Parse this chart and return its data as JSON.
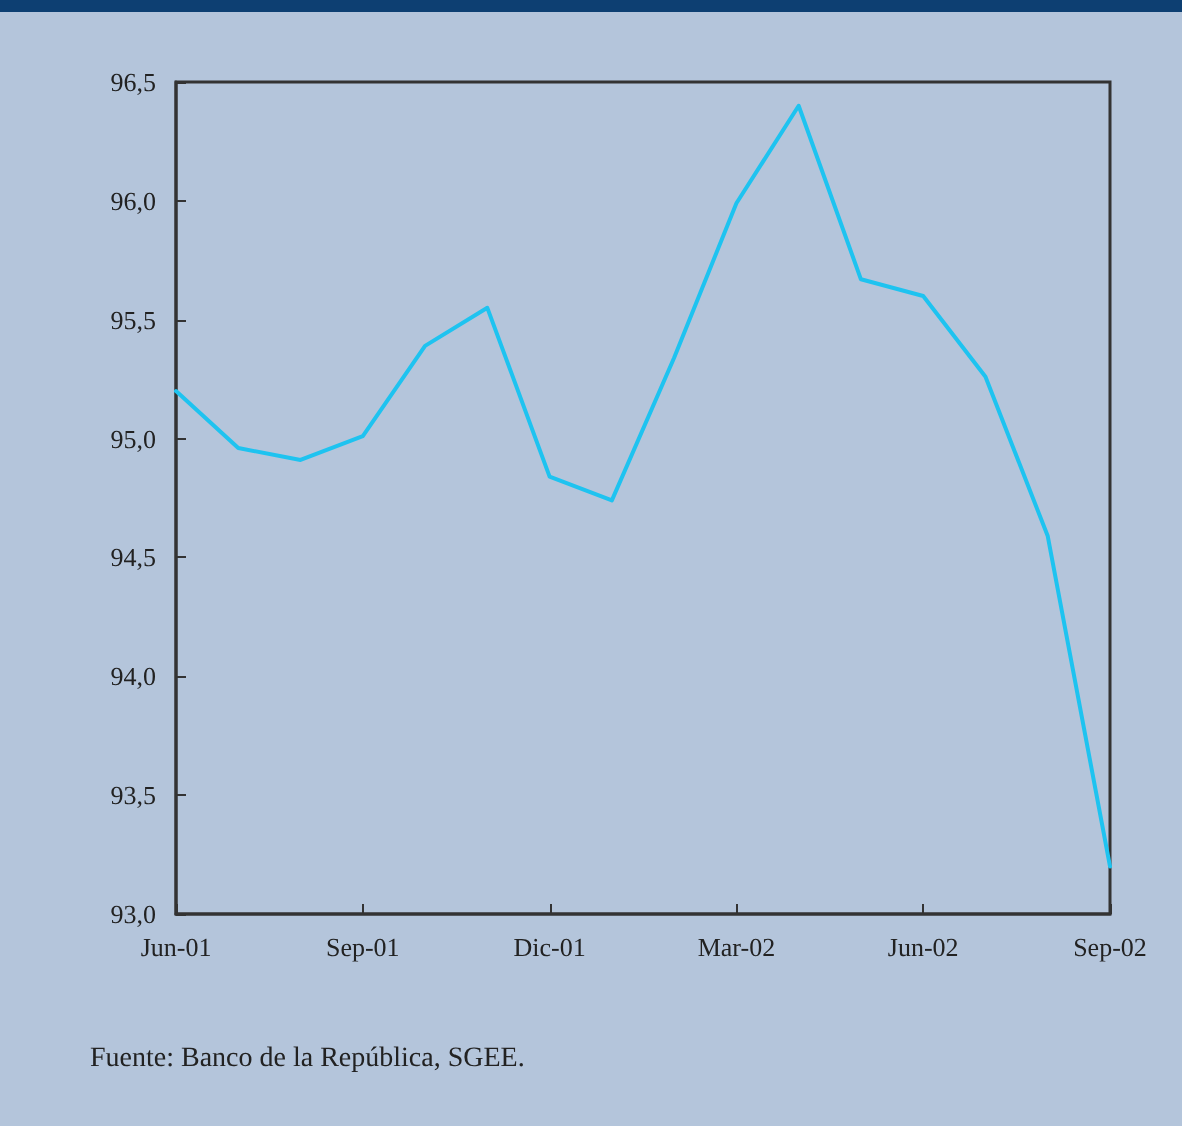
{
  "chart_data": {
    "type": "line",
    "categories": [
      "Jun-01",
      null,
      null,
      "Sep-01",
      null,
      null,
      "Dic-01",
      null,
      null,
      "Mar-02",
      null,
      null,
      "Jun-02",
      null,
      null,
      "Sep-02"
    ],
    "series": [
      {
        "color": "#1ec3f0",
        "values": [
          95.2,
          94.96,
          94.91,
          95.01,
          95.39,
          95.55,
          94.84,
          94.74,
          95.34,
          95.99,
          96.4,
          95.67,
          95.6,
          95.26,
          94.59,
          93.2
        ]
      }
    ],
    "ylim": [
      93.0,
      96.5
    ],
    "yticks": [
      {
        "value": 93.0,
        "label": "93,0"
      },
      {
        "value": 93.5,
        "label": "93,5"
      },
      {
        "value": 94.0,
        "label": "94,0"
      },
      {
        "value": 94.5,
        "label": "94,5"
      },
      {
        "value": 95.0,
        "label": "95,0"
      },
      {
        "value": 95.5,
        "label": "95,5"
      },
      {
        "value": 96.0,
        "label": "96,0"
      },
      {
        "value": 96.5,
        "label": "96,5"
      }
    ],
    "grid": false,
    "marker": "none",
    "line_style": "solid",
    "annotations": [
      "Fuente: Banco de la República, SGEE."
    ]
  }
}
